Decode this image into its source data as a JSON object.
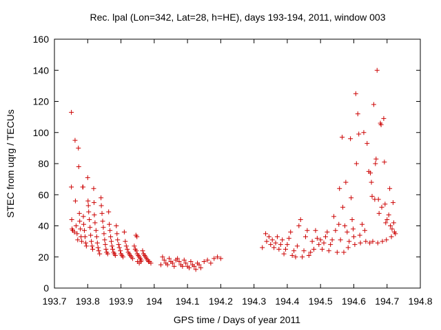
{
  "chart_data": {
    "type": "scatter",
    "title": "Rec. lpal (Lon=342, Lat=28, h=HE), days 193-194, 2011, window 003",
    "xlabel": "GPS time / Days of year 2011",
    "ylabel": "STEC from uqrg / TECUs",
    "xlim": [
      193.7,
      194.8
    ],
    "ylim": [
      0,
      160
    ],
    "xticks": [
      193.7,
      193.8,
      193.9,
      194.0,
      194.1,
      194.2,
      194.3,
      194.4,
      194.5,
      194.6,
      194.7,
      194.8
    ],
    "xtick_labels": [
      "193.7",
      "193.8",
      "193.9",
      "194",
      "194.1",
      "194.2",
      "194.3",
      "194.4",
      "194.5",
      "194.6",
      "194.7",
      "194.8"
    ],
    "yticks": [
      0,
      20,
      40,
      60,
      80,
      100,
      120,
      140,
      160
    ],
    "ytick_labels": [
      "0",
      "20",
      "40",
      "60",
      "80",
      "100",
      "120",
      "140",
      "160"
    ],
    "grid": false,
    "marker": "+",
    "color": "#cc0000",
    "series": [
      {
        "points": [
          [
            193.751,
            113
          ],
          [
            193.751,
            65
          ],
          [
            193.752,
            44
          ],
          [
            193.753,
            38
          ],
          [
            193.755,
            37
          ],
          [
            193.76,
            36
          ],
          [
            193.762,
            95
          ],
          [
            193.763,
            56
          ],
          [
            193.765,
            40
          ],
          [
            193.768,
            35
          ],
          [
            193.77,
            31
          ],
          [
            193.772,
            90
          ],
          [
            193.773,
            78
          ],
          [
            193.775,
            48
          ],
          [
            193.776,
            43
          ],
          [
            193.778,
            38
          ],
          [
            193.78,
            33
          ],
          [
            193.782,
            30
          ],
          [
            193.785,
            65
          ],
          [
            193.786,
            65
          ],
          [
            193.787,
            46
          ],
          [
            193.788,
            41
          ],
          [
            193.79,
            37
          ],
          [
            193.792,
            33
          ],
          [
            193.794,
            29
          ],
          [
            193.796,
            27
          ],
          [
            193.8,
            71
          ],
          [
            193.801,
            56
          ],
          [
            193.802,
            53
          ],
          [
            193.803,
            49
          ],
          [
            193.805,
            44
          ],
          [
            193.807,
            39
          ],
          [
            193.809,
            34
          ],
          [
            193.811,
            30
          ],
          [
            193.813,
            27
          ],
          [
            193.815,
            25
          ],
          [
            193.818,
            64
          ],
          [
            193.819,
            55
          ],
          [
            193.82,
            47
          ],
          [
            193.822,
            42
          ],
          [
            193.825,
            37
          ],
          [
            193.827,
            33
          ],
          [
            193.829,
            29
          ],
          [
            193.831,
            26
          ],
          [
            193.833,
            24
          ],
          [
            193.836,
            22
          ],
          [
            193.84,
            58
          ],
          [
            193.841,
            53
          ],
          [
            193.843,
            48
          ],
          [
            193.845,
            43
          ],
          [
            193.847,
            39
          ],
          [
            193.849,
            35
          ],
          [
            193.851,
            31
          ],
          [
            193.853,
            28
          ],
          [
            193.855,
            25
          ],
          [
            193.857,
            23
          ],
          [
            193.86,
            22
          ],
          [
            193.863,
            49
          ],
          [
            193.865,
            41
          ],
          [
            193.867,
            37
          ],
          [
            193.869,
            33
          ],
          [
            193.871,
            30
          ],
          [
            193.873,
            27
          ],
          [
            193.875,
            25
          ],
          [
            193.878,
            23
          ],
          [
            193.88,
            22
          ],
          [
            193.883,
            21
          ],
          [
            193.886,
            40
          ],
          [
            193.888,
            35
          ],
          [
            193.89,
            31
          ],
          [
            193.893,
            28
          ],
          [
            193.895,
            26
          ],
          [
            193.898,
            24
          ],
          [
            193.9,
            22
          ],
          [
            193.903,
            21
          ],
          [
            193.906,
            20
          ],
          [
            193.91,
            36
          ],
          [
            193.913,
            30
          ],
          [
            193.916,
            27
          ],
          [
            193.919,
            25
          ],
          [
            193.922,
            23
          ],
          [
            193.925,
            22
          ],
          [
            193.928,
            21
          ],
          [
            193.931,
            20
          ],
          [
            193.935,
            19
          ],
          [
            193.94,
            27
          ],
          [
            193.943,
            25
          ],
          [
            193.946,
            24
          ],
          [
            193.949,
            22
          ],
          [
            193.952,
            21
          ],
          [
            193.955,
            20
          ],
          [
            193.958,
            19
          ],
          [
            193.961,
            18
          ],
          [
            193.945,
            34
          ],
          [
            193.948,
            33
          ],
          [
            193.95,
            17
          ],
          [
            193.955,
            16
          ],
          [
            193.96,
            17
          ],
          [
            193.965,
            24
          ],
          [
            193.968,
            22
          ],
          [
            193.971,
            21
          ],
          [
            193.974,
            20
          ],
          [
            193.977,
            19
          ],
          [
            193.98,
            18
          ],
          [
            193.983,
            17
          ],
          [
            193.986,
            17
          ],
          [
            193.99,
            16
          ],
          [
            194.02,
            15
          ],
          [
            194.025,
            20
          ],
          [
            194.03,
            18
          ],
          [
            194.035,
            16
          ],
          [
            194.04,
            15
          ],
          [
            194.045,
            19
          ],
          [
            194.05,
            17
          ],
          [
            194.055,
            16
          ],
          [
            194.06,
            14
          ],
          [
            194.065,
            18
          ],
          [
            194.07,
            19
          ],
          [
            194.075,
            17
          ],
          [
            194.08,
            15
          ],
          [
            194.085,
            14
          ],
          [
            194.09,
            18
          ],
          [
            194.095,
            16
          ],
          [
            194.1,
            14
          ],
          [
            194.105,
            13
          ],
          [
            194.11,
            17
          ],
          [
            194.115,
            15
          ],
          [
            194.12,
            14
          ],
          [
            194.125,
            12
          ],
          [
            194.13,
            16
          ],
          [
            194.135,
            15
          ],
          [
            194.14,
            13
          ],
          [
            194.15,
            17
          ],
          [
            194.16,
            18
          ],
          [
            194.17,
            16
          ],
          [
            194.18,
            19
          ],
          [
            194.19,
            20
          ],
          [
            194.2,
            19
          ],
          [
            194.325,
            26
          ],
          [
            194.335,
            35
          ],
          [
            194.338,
            30
          ],
          [
            194.345,
            33
          ],
          [
            194.35,
            28
          ],
          [
            194.355,
            31
          ],
          [
            194.36,
            26
          ],
          [
            194.365,
            29
          ],
          [
            194.37,
            33
          ],
          [
            194.375,
            25
          ],
          [
            194.38,
            28
          ],
          [
            194.385,
            31
          ],
          [
            194.39,
            22
          ],
          [
            194.395,
            25
          ],
          [
            194.4,
            28
          ],
          [
            194.405,
            32
          ],
          [
            194.41,
            36
          ],
          [
            194.415,
            21
          ],
          [
            194.42,
            24
          ],
          [
            194.425,
            20
          ],
          [
            194.43,
            27
          ],
          [
            194.435,
            40
          ],
          [
            194.44,
            44
          ],
          [
            194.445,
            20
          ],
          [
            194.45,
            24
          ],
          [
            194.455,
            33
          ],
          [
            194.46,
            37
          ],
          [
            194.465,
            21
          ],
          [
            194.47,
            23
          ],
          [
            194.475,
            30
          ],
          [
            194.48,
            25
          ],
          [
            194.485,
            37
          ],
          [
            194.49,
            32
          ],
          [
            194.495,
            28
          ],
          [
            194.5,
            31
          ],
          [
            194.505,
            25
          ],
          [
            194.51,
            29
          ],
          [
            194.515,
            33
          ],
          [
            194.52,
            36
          ],
          [
            194.525,
            24
          ],
          [
            194.53,
            28
          ],
          [
            194.535,
            31
          ],
          [
            194.54,
            46
          ],
          [
            194.545,
            37
          ],
          [
            194.55,
            23
          ],
          [
            194.555,
            41
          ],
          [
            194.557,
            64
          ],
          [
            194.56,
            31
          ],
          [
            194.565,
            97
          ],
          [
            194.567,
            52
          ],
          [
            194.57,
            23
          ],
          [
            194.573,
            40
          ],
          [
            194.576,
            68
          ],
          [
            194.58,
            36
          ],
          [
            194.583,
            26
          ],
          [
            194.586,
            30
          ],
          [
            194.59,
            96
          ],
          [
            194.592,
            58
          ],
          [
            194.595,
            44
          ],
          [
            194.598,
            38
          ],
          [
            194.6,
            33
          ],
          [
            194.603,
            28
          ],
          [
            194.606,
            125
          ],
          [
            194.608,
            80
          ],
          [
            194.612,
            112
          ],
          [
            194.615,
            99
          ],
          [
            194.618,
            34
          ],
          [
            194.62,
            29
          ],
          [
            194.625,
            41
          ],
          [
            194.63,
            100
          ],
          [
            194.633,
            37
          ],
          [
            194.636,
            30
          ],
          [
            194.64,
            93
          ],
          [
            194.645,
            75
          ],
          [
            194.648,
            29
          ],
          [
            194.65,
            74
          ],
          [
            194.653,
            68
          ],
          [
            194.655,
            59
          ],
          [
            194.657,
            30
          ],
          [
            194.66,
            118
          ],
          [
            194.663,
            57
          ],
          [
            194.665,
            80
          ],
          [
            194.667,
            83
          ],
          [
            194.67,
            140
          ],
          [
            194.672,
            29
          ],
          [
            194.674,
            57
          ],
          [
            194.676,
            48
          ],
          [
            194.68,
            106
          ],
          [
            194.682,
            105
          ],
          [
            194.684,
            52
          ],
          [
            194.686,
            30
          ],
          [
            194.69,
            109
          ],
          [
            194.692,
            81
          ],
          [
            194.694,
            54
          ],
          [
            194.696,
            42
          ],
          [
            194.698,
            31
          ],
          [
            194.7,
            44
          ],
          [
            194.705,
            47
          ],
          [
            194.708,
            64
          ],
          [
            194.71,
            40
          ],
          [
            194.713,
            33
          ],
          [
            194.715,
            38
          ],
          [
            194.718,
            55
          ],
          [
            194.72,
            42
          ],
          [
            194.722,
            36
          ],
          [
            194.725,
            35
          ]
        ]
      }
    ]
  }
}
